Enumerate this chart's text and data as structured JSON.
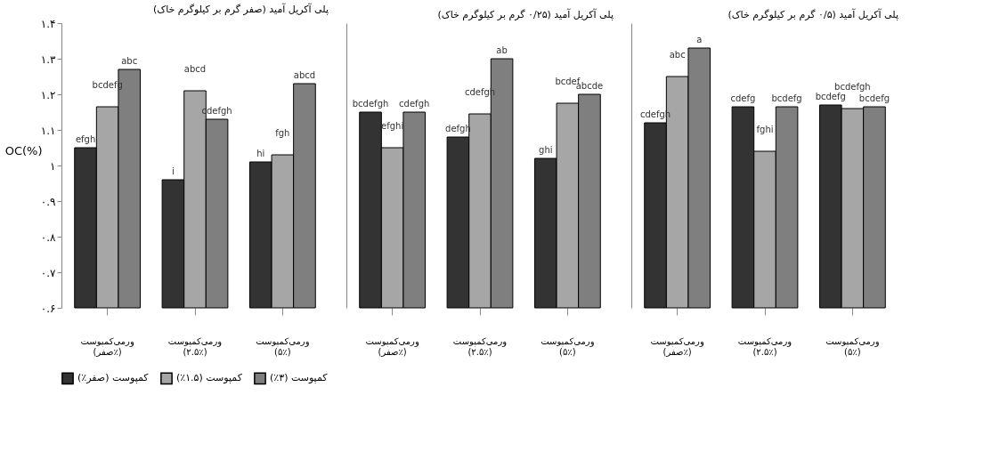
{
  "chart_data": [
    {
      "type": "bar",
      "title": "پلی آکریل آمید (صفر گرم بر کیلوگرم خاک)",
      "ylabel": "OC(%)",
      "categories": [
        "ورمی‌کمپوست (صفر٪)",
        "ورمی‌کمپوست (۲.۵٪)",
        "ورمی‌کمپوست (۵٪)"
      ],
      "ylim": [
        0.6,
        1.4
      ],
      "yticks": [
        {
          "value": 0.6,
          "label": "۰.۶"
        },
        {
          "value": 0.7,
          "label": "۰.۷"
        },
        {
          "value": 0.8,
          "label": "۰.۸"
        },
        {
          "value": 0.9,
          "label": "۰.۹"
        },
        {
          "value": 1.0,
          "label": "۱"
        },
        {
          "value": 1.1,
          "label": "۱.۱"
        },
        {
          "value": 1.2,
          "label": "۱.۲"
        },
        {
          "value": 1.3,
          "label": "۱.۳"
        },
        {
          "value": 1.4,
          "label": "۱.۴"
        }
      ],
      "grid": false,
      "legend": "bottom",
      "series": [
        {
          "name": "کمپوست (صفر٪)",
          "color": "#333333",
          "values": [
            1.05,
            0.96,
            1.01
          ],
          "value_labels": [
            "efgh",
            "i",
            "hi"
          ]
        },
        {
          "name": "کمپوست (۱.۵٪)",
          "color": "#a6a6a6",
          "values": [
            1.165,
            1.21,
            1.03
          ],
          "value_labels": [
            "bcdefg",
            "abcd",
            "fgh"
          ]
        },
        {
          "name": "کمپوست (۳٪)",
          "color": "#7f7f7f",
          "values": [
            1.27,
            1.13,
            1.23
          ],
          "value_labels": [
            "abc",
            "cdefgh",
            "abcd"
          ]
        }
      ]
    },
    {
      "type": "bar",
      "title": "پلی آکریل آمید (۰/۲۵ گرم بر کیلوگرم خاک)",
      "categories": [
        "ورمی‌کمپوست (صفر٪)",
        "ورمی‌کمپوست (۲.۵٪)",
        "ورمی‌کمپوست (۵٪)"
      ],
      "ylim": [
        0.6,
        1.4
      ],
      "tick_labels": "x",
      "grid": false,
      "legend": "bottom",
      "series": [
        {
          "name": "کمپوست (صفر٪)",
          "color": "#333333",
          "values": [
            1.15,
            1.08,
            1.02
          ],
          "value_labels": [
            "bcdefgh",
            "defgh",
            "ghi"
          ]
        },
        {
          "name": "کمپوست (۱.۵٪)",
          "color": "#a6a6a6",
          "values": [
            1.05,
            1.145,
            1.175
          ],
          "value_labels": [
            "efghi",
            "cdefgh",
            "bcdef"
          ]
        },
        {
          "name": "کمپوست (۳٪)",
          "color": "#7f7f7f",
          "values": [
            1.15,
            1.3,
            1.2
          ],
          "value_labels": [
            "cdefgh",
            "ab",
            "abcde"
          ]
        }
      ]
    },
    {
      "type": "bar",
      "title": "پلی آکریل آمید (۰/۵ گرم بر کیلوگرم خاک)",
      "categories": [
        "ورمی‌کمپوست (صفر٪)",
        "ورمی‌کمپوست (۲.۵٪)",
        "ورمی‌کمپوست (۵٪)"
      ],
      "ylim": [
        0.6,
        1.4
      ],
      "tick_labels": "x",
      "grid": false,
      "legend": "bottom",
      "series": [
        {
          "name": "کمپوست (صفر٪)",
          "color": "#333333",
          "values": [
            1.12,
            1.165,
            1.17
          ],
          "value_labels": [
            "cdefgh",
            "cdefg",
            "bcdefg"
          ]
        },
        {
          "name": "کمپوست (۱.۵٪)",
          "color": "#a6a6a6",
          "values": [
            1.25,
            1.04,
            1.16
          ],
          "value_labels": [
            "abc",
            "fghi",
            "bcdefgh"
          ]
        },
        {
          "name": "کمپوست (۳٪)",
          "color": "#7f7f7f",
          "values": [
            1.33,
            1.165,
            1.165
          ],
          "value_labels": [
            "a",
            "bcdefg",
            "bcdefg"
          ]
        }
      ]
    }
  ]
}
